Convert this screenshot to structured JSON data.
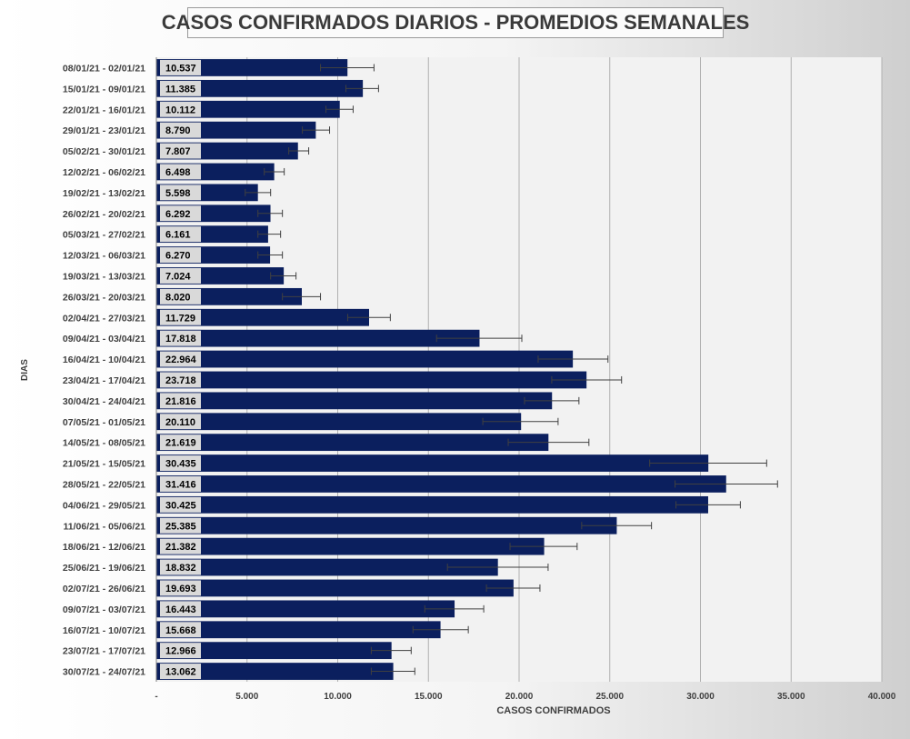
{
  "chart_data": {
    "type": "bar",
    "orientation": "horizontal",
    "title": "CASOS CONFIRMADOS DIARIOS - PROMEDIOS SEMANALES",
    "xlabel": "CASOS CONFIRMADOS",
    "ylabel": "DIAS",
    "xlim": [
      0,
      40000
    ],
    "xticks": [
      0,
      5000,
      10000,
      15000,
      20000,
      25000,
      30000,
      35000,
      40000
    ],
    "xtick_labels": [
      "-",
      "5.000",
      "10.000",
      "15.000",
      "20.000",
      "25.000",
      "30.000",
      "35.000",
      "40.000"
    ],
    "grid": true,
    "bar_color": "#0b1f5e",
    "error_bars": true,
    "categories": [
      "08/01/21 - 02/01/21",
      "15/01/21 - 09/01/21",
      "22/01/21 - 16/01/21",
      "29/01/21 - 23/01/21",
      "05/02/21 - 30/01/21",
      "12/02/21 - 06/02/21",
      "19/02/21 - 13/02/21",
      "26/02/21 - 20/02/21",
      "05/03/21 - 27/02/21",
      "12/03/21 - 06/03/21",
      "19/03/21 - 13/03/21",
      "26/03/21 - 20/03/21",
      "02/04/21 - 27/03/21",
      "09/04/21 - 03/04/21",
      "16/04/21 - 10/04/21",
      "23/04/21 - 17/04/21",
      "30/04/21 - 24/04/21",
      "07/05/21 - 01/05/21",
      "14/05/21 - 08/05/21",
      "21/05/21 - 15/05/21",
      "28/05/21 - 22/05/21",
      "04/06/21 - 29/05/21",
      "11/06/21 - 05/06/21",
      "18/06/21 - 12/06/21",
      "25/06/21 - 19/06/21",
      "02/07/21 - 26/06/21",
      "09/07/21 - 03/07/21",
      "16/07/21 - 10/07/21",
      "23/07/21 - 17/07/21",
      "30/07/21 - 24/07/21"
    ],
    "values": [
      10537,
      11385,
      10112,
      8790,
      7807,
      6498,
      5598,
      6292,
      6161,
      6270,
      7024,
      8020,
      11729,
      17818,
      22964,
      23718,
      21816,
      20110,
      21619,
      30435,
      31416,
      30425,
      25385,
      21382,
      18832,
      19693,
      16443,
      15668,
      12966,
      13062
    ],
    "value_labels": [
      "10.537",
      "11.385",
      "10.112",
      "8.790",
      "7.807",
      "6.498",
      "5.598",
      "6.292",
      "6.161",
      "6.270",
      "7.024",
      "8.020",
      "11.729",
      "17.818",
      "22.964",
      "23.718",
      "21.816",
      "20.110",
      "21.619",
      "30.435",
      "31.416",
      "30.425",
      "25.385",
      "21.382",
      "18.832",
      "19.693",
      "16.443",
      "15.668",
      "12.966",
      "13.062"
    ],
    "error_low": [
      9050,
      10450,
      9350,
      8050,
      7300,
      5950,
      4900,
      5600,
      5600,
      5600,
      6300,
      6950,
      10550,
      15450,
      21050,
      21800,
      20300,
      18000,
      19400,
      27200,
      28600,
      28650,
      23450,
      19500,
      16050,
      18200,
      14800,
      14150,
      11850,
      11850
    ],
    "error_high": [
      12000,
      12250,
      10850,
      9550,
      8400,
      7050,
      6300,
      6950,
      6850,
      6950,
      7700,
      9050,
      12900,
      20150,
      24900,
      25650,
      23300,
      22150,
      23850,
      33650,
      34250,
      32200,
      27300,
      23200,
      21600,
      21150,
      18050,
      17200,
      14050,
      14250
    ]
  }
}
